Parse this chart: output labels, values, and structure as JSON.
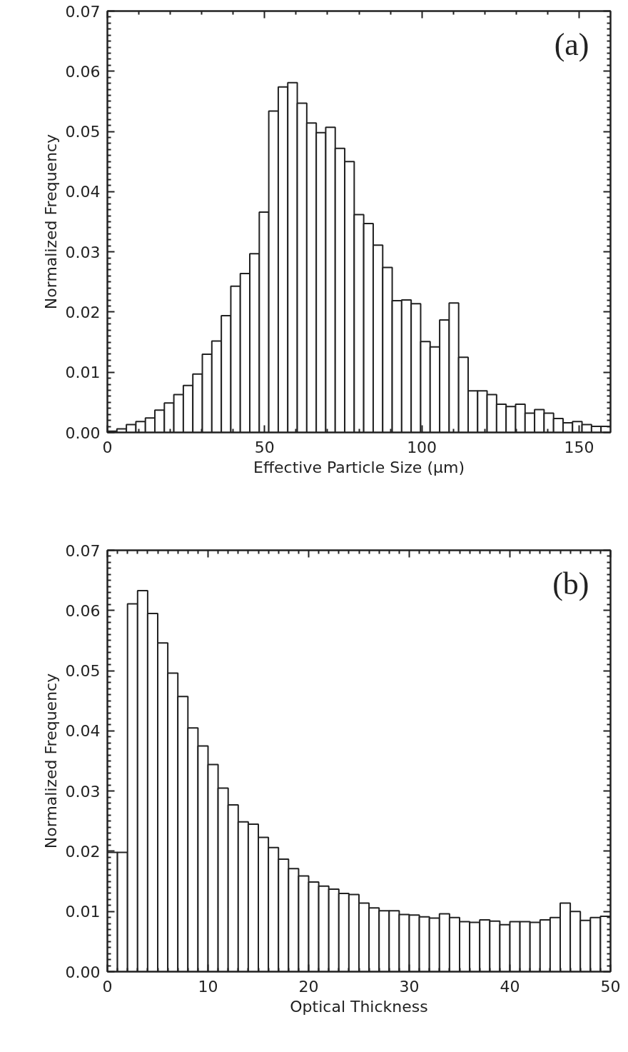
{
  "chart_data": [
    {
      "type": "histogram",
      "xlabel": "Effective Particle Size (μm)",
      "ylabel": "Normalized Frequency",
      "annotations": [
        "(a)"
      ],
      "color": "#ffffff",
      "bins": [
        0,
        3.02,
        6.04,
        9.06,
        12.08,
        15.09,
        18.11,
        21.13,
        24.15,
        27.17,
        30.19,
        33.21,
        36.23,
        39.25,
        42.26,
        45.28,
        48.3,
        51.32,
        54.34,
        57.36,
        60.38,
        63.4,
        66.42,
        69.43,
        72.45,
        75.47,
        78.49,
        81.51,
        84.53,
        87.55,
        90.57,
        93.58,
        96.6,
        99.62,
        102.64,
        105.66,
        108.68,
        111.7,
        114.72,
        117.74,
        120.75,
        123.77,
        126.79,
        129.81,
        132.83,
        135.85,
        138.87,
        141.89,
        144.91,
        147.92,
        150.94,
        153.96,
        156.98,
        160
      ],
      "values": [
        0.0002,
        0.0006,
        0.0013,
        0.0018,
        0.0024,
        0.0037,
        0.0049,
        0.0063,
        0.0078,
        0.0097,
        0.013,
        0.0152,
        0.0194,
        0.0243,
        0.0264,
        0.0297,
        0.0366,
        0.0534,
        0.0574,
        0.0581,
        0.0547,
        0.0514,
        0.0498,
        0.0507,
        0.0472,
        0.045,
        0.0362,
        0.0347,
        0.0311,
        0.0274,
        0.0219,
        0.022,
        0.0214,
        0.0151,
        0.0142,
        0.0187,
        0.0215,
        0.0125,
        0.0069,
        0.0069,
        0.0063,
        0.0047,
        0.0043,
        0.0047,
        0.0032,
        0.0038,
        0.0032,
        0.0023,
        0.0016,
        0.0018,
        0.0013,
        0.001,
        0.001
      ],
      "xlim": [
        0,
        160
      ],
      "xticks": [
        0,
        50,
        100,
        150
      ],
      "ylim": [
        0,
        0.07
      ],
      "yticks": [
        {
          "value": 0,
          "label": "0.00"
        },
        {
          "value": 0.01,
          "label": "0.01"
        },
        {
          "value": 0.02,
          "label": "0.02"
        },
        {
          "value": 0.03,
          "label": "0.03"
        },
        {
          "value": 0.04,
          "label": "0.04"
        },
        {
          "value": 0.05,
          "label": "0.05"
        },
        {
          "value": 0.06,
          "label": "0.06"
        },
        {
          "value": 0.07,
          "label": "0.07"
        }
      ]
    },
    {
      "type": "histogram",
      "xlabel": "Optical Thickness",
      "ylabel": "Normalized Frequency",
      "annotations": [
        "(b)"
      ],
      "color": "#ffffff",
      "bins": [
        0,
        1,
        2,
        3,
        4,
        5,
        6,
        7,
        8,
        9,
        10,
        11,
        12,
        13,
        14,
        15,
        16,
        17,
        18,
        19,
        20,
        21,
        22,
        23,
        24,
        25,
        26,
        27,
        28,
        29,
        30,
        31,
        32,
        33,
        34,
        35,
        36,
        37,
        38,
        39,
        40,
        41,
        42,
        43,
        44,
        45,
        46,
        47,
        48,
        49,
        50
      ],
      "values": [
        0.0198,
        0.0198,
        0.0611,
        0.0633,
        0.0595,
        0.0546,
        0.0496,
        0.0457,
        0.0405,
        0.0375,
        0.0344,
        0.0305,
        0.0277,
        0.0249,
        0.0245,
        0.0223,
        0.0206,
        0.0187,
        0.0171,
        0.0159,
        0.0149,
        0.0142,
        0.0137,
        0.013,
        0.0128,
        0.0114,
        0.0106,
        0.0101,
        0.0101,
        0.0095,
        0.0094,
        0.0091,
        0.0089,
        0.0096,
        0.009,
        0.0083,
        0.0082,
        0.0086,
        0.0084,
        0.0078,
        0.0083,
        0.0083,
        0.0082,
        0.0086,
        0.009,
        0.0114,
        0.01,
        0.0085,
        0.009,
        0.0092
      ],
      "xlim": [
        0,
        50
      ],
      "xticks": [
        0,
        10,
        20,
        30,
        40,
        50
      ],
      "ylim": [
        0,
        0.07
      ],
      "yticks": [
        {
          "value": 0,
          "label": "0.00"
        },
        {
          "value": 0.01,
          "label": "0.01"
        },
        {
          "value": 0.02,
          "label": "0.02"
        },
        {
          "value": 0.03,
          "label": "0.03"
        },
        {
          "value": 0.04,
          "label": "0.04"
        },
        {
          "value": 0.05,
          "label": "0.05"
        },
        {
          "value": 0.06,
          "label": "0.06"
        },
        {
          "value": 0.07,
          "label": "0.07"
        }
      ]
    }
  ]
}
